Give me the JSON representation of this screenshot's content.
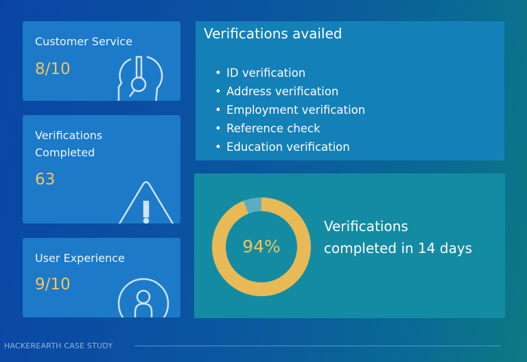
{
  "cards": [
    {
      "title": "Customer Service",
      "value": "8/10",
      "icon": "headset-icon"
    },
    {
      "title_line1": "Verifications",
      "title_line2": "Completed",
      "value": "63",
      "icon": "warning-icon"
    },
    {
      "title": "User Experience",
      "value": "9/10",
      "icon": "user-icon"
    }
  ],
  "verifications": {
    "title": "Verifications availed",
    "items": [
      "ID verification",
      "Address verification",
      "Employment verification",
      "Reference check",
      "Education verification"
    ]
  },
  "donut": {
    "percent": 94,
    "label": "94%",
    "text_line1": "Verifications",
    "text_line2": "completed in 14 days",
    "colors": {
      "fill": "#e9b955",
      "remainder": "#5aaec0"
    }
  },
  "footer": {
    "text": "HACKEREARTH CASE STUDY"
  }
}
